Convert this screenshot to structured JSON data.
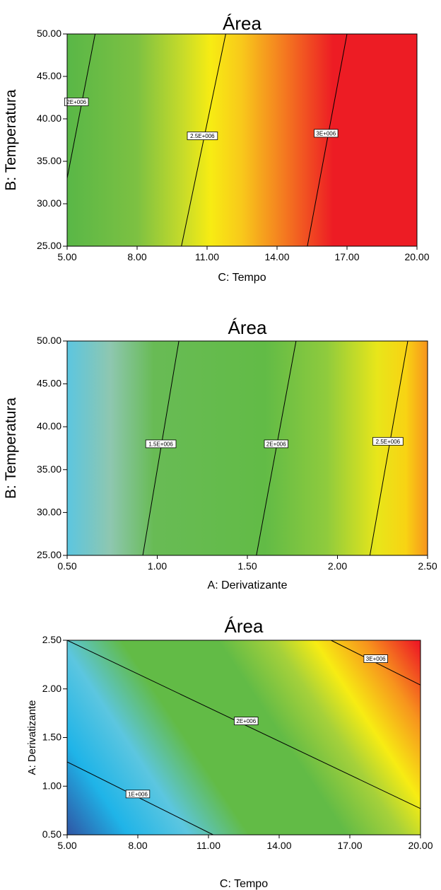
{
  "chart_data": [
    {
      "type": "contour",
      "title": "Área",
      "xlabel": "C: Tempo",
      "ylabel": "B: Temperatura",
      "xlim": [
        5,
        20
      ],
      "ylim": [
        25,
        50
      ],
      "x_ticks": [
        "5.00",
        "8.00",
        "11.00",
        "14.00",
        "17.00",
        "20.00"
      ],
      "y_ticks": [
        "25.00",
        "30.00",
        "35.00",
        "40.00",
        "45.00",
        "50.00"
      ],
      "colors": [
        "#2f55a4",
        "#1fb4e8",
        "#5cc6e0",
        "#62bb46",
        "#f7ec13",
        "#f7941d",
        "#ed1c24"
      ],
      "contours": [
        {
          "label": "2E+006",
          "points": [
            [
              5.0,
              33.0
            ],
            [
              6.2,
              50.0
            ]
          ],
          "label_at": [
            5.4,
            42.0
          ]
        },
        {
          "label": "2.5E+006",
          "points": [
            [
              9.9,
              25.0
            ],
            [
              11.8,
              50.0
            ]
          ],
          "label_at": [
            10.8,
            38.0
          ]
        },
        {
          "label": "3E+006",
          "points": [
            [
              15.3,
              25.0
            ],
            [
              17.0,
              50.0
            ]
          ],
          "label_at": [
            16.1,
            38.3
          ]
        }
      ]
    },
    {
      "type": "contour",
      "title": "Área",
      "xlabel": "A: Derivatizante",
      "ylabel": "B: Temperatura",
      "xlim": [
        0.5,
        2.5
      ],
      "ylim": [
        25,
        50
      ],
      "x_ticks": [
        "0.50",
        "1.00",
        "1.50",
        "2.00",
        "2.50"
      ],
      "y_ticks": [
        "25.00",
        "30.00",
        "35.00",
        "40.00",
        "45.00",
        "50.00"
      ],
      "colors": [
        "#2f55a4",
        "#1fb4e8",
        "#5cc6e0",
        "#62bb46",
        "#f7ec13",
        "#f7941d",
        "#ed1c24"
      ],
      "contours": [
        {
          "label": "1.5E+006",
          "points": [
            [
              0.92,
              25.0
            ],
            [
              1.12,
              50.0
            ]
          ],
          "label_at": [
            1.02,
            38.0
          ]
        },
        {
          "label": "2E+006",
          "points": [
            [
              1.55,
              25.0
            ],
            [
              1.77,
              50.0
            ]
          ],
          "label_at": [
            1.66,
            38.0
          ]
        },
        {
          "label": "2.5E+006",
          "points": [
            [
              2.18,
              25.0
            ],
            [
              2.39,
              50.0
            ]
          ],
          "label_at": [
            2.28,
            38.3
          ]
        }
      ]
    },
    {
      "type": "contour",
      "title": "Área",
      "xlabel": "C: Tempo",
      "ylabel": "A: Derivatizante",
      "xlim": [
        5,
        20
      ],
      "ylim": [
        0.5,
        2.5
      ],
      "x_ticks": [
        "5.00",
        "8.00",
        "11.00",
        "14.00",
        "17.00",
        "20.00"
      ],
      "y_ticks": [
        "0.50",
        "1.00",
        "1.50",
        "2.00",
        "2.50"
      ],
      "colors": [
        "#2f55a4",
        "#1fb4e8",
        "#5cc6e0",
        "#62bb46",
        "#f7ec13",
        "#f7941d",
        "#ed1c24"
      ],
      "contours": [
        {
          "label": "1E+006",
          "points": [
            [
              5.0,
              1.25
            ],
            [
              11.2,
              0.5
            ]
          ],
          "label_at": [
            8.0,
            0.92
          ]
        },
        {
          "label": "2E+006",
          "points": [
            [
              5.0,
              2.5
            ],
            [
              20.0,
              0.77
            ]
          ],
          "label_at": [
            12.6,
            1.67
          ]
        },
        {
          "label": "3E+006",
          "points": [
            [
              16.2,
              2.5
            ],
            [
              20.0,
              2.04
            ]
          ],
          "label_at": [
            18.1,
            2.31
          ]
        }
      ]
    }
  ]
}
